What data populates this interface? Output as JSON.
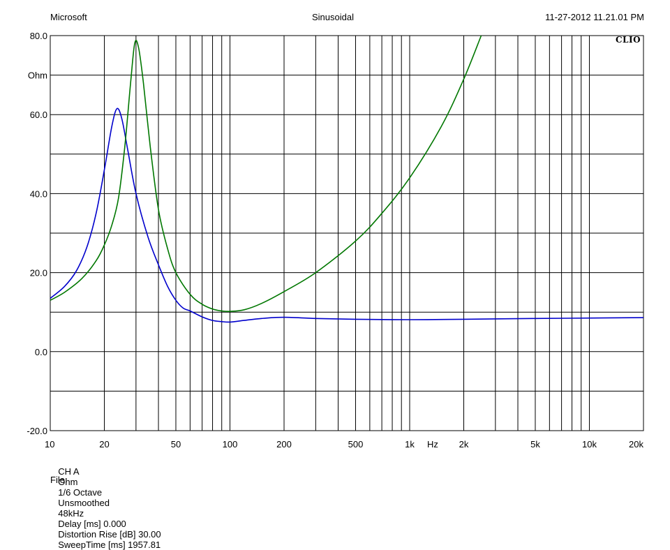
{
  "header": {
    "left": "Microsoft",
    "center": "Sinusoidal",
    "right": "11-27-2012 11.21.01 PM",
    "logo": "CLIO"
  },
  "footer": {
    "items": [
      "CH A",
      "Ohm",
      "1/6 Octave",
      "Unsmoothed",
      "48kHz",
      "Delay [ms] 0.000",
      "Distortion Rise [dB] 30.00",
      "SweepTime [ms] 1957.81"
    ],
    "file_label": "File:"
  },
  "chart_data": {
    "type": "line",
    "x_scale": "log",
    "xlim": [
      10,
      20000
    ],
    "ylim": [
      -20,
      80
    ],
    "ylabel": "Ohm",
    "xlabel": "Hz",
    "grid": true,
    "y_tick_labels": [
      "80.0",
      "60.0",
      "40.0",
      "20.0",
      "0.0",
      "-20.0"
    ],
    "y_ticks": [
      80,
      60,
      40,
      20,
      0,
      -20
    ],
    "x_tick_labels": [
      {
        "value": 10,
        "label": "10"
      },
      {
        "value": 20,
        "label": "20"
      },
      {
        "value": 50,
        "label": "50"
      },
      {
        "value": 100,
        "label": "100"
      },
      {
        "value": 200,
        "label": "200"
      },
      {
        "value": 500,
        "label": "500"
      },
      {
        "value": 1000,
        "label": "1k"
      },
      {
        "value": 2000,
        "label": "2k"
      },
      {
        "value": 5000,
        "label": "5k"
      },
      {
        "value": 10000,
        "label": "10k"
      },
      {
        "value": 20000,
        "label": "20k"
      }
    ],
    "series": [
      {
        "color": "#0000cc",
        "points": [
          [
            10,
            13.5
          ],
          [
            12,
            16.5
          ],
          [
            14,
            20.5
          ],
          [
            16,
            26.5
          ],
          [
            18,
            35
          ],
          [
            20,
            46
          ],
          [
            22,
            57
          ],
          [
            23.5,
            61.5
          ],
          [
            25,
            59
          ],
          [
            27,
            51
          ],
          [
            30,
            40
          ],
          [
            35,
            29
          ],
          [
            40,
            22
          ],
          [
            45,
            16.5
          ],
          [
            50,
            13
          ],
          [
            55,
            11
          ],
          [
            60,
            10.3
          ],
          [
            70,
            8.8
          ],
          [
            80,
            7.9
          ],
          [
            90,
            7.6
          ],
          [
            100,
            7.5
          ],
          [
            120,
            7.9
          ],
          [
            150,
            8.4
          ],
          [
            200,
            8.7
          ],
          [
            300,
            8.4
          ],
          [
            500,
            8.2
          ],
          [
            1000,
            8.1
          ],
          [
            2000,
            8.2
          ],
          [
            5000,
            8.4
          ],
          [
            10000,
            8.5
          ],
          [
            20000,
            8.6
          ]
        ]
      },
      {
        "color": "#007700",
        "points": [
          [
            10,
            13
          ],
          [
            12,
            15
          ],
          [
            15,
            18.5
          ],
          [
            18,
            23
          ],
          [
            20,
            27
          ],
          [
            22,
            32
          ],
          [
            24,
            39
          ],
          [
            26,
            52
          ],
          [
            28,
            68
          ],
          [
            29.5,
            78
          ],
          [
            31,
            77
          ],
          [
            33,
            68
          ],
          [
            36,
            52
          ],
          [
            40,
            36
          ],
          [
            45,
            26
          ],
          [
            50,
            20
          ],
          [
            60,
            14.5
          ],
          [
            70,
            12
          ],
          [
            80,
            10.8
          ],
          [
            90,
            10.3
          ],
          [
            100,
            10.2
          ],
          [
            120,
            10.6
          ],
          [
            150,
            12.2
          ],
          [
            200,
            15.2
          ],
          [
            300,
            20
          ],
          [
            500,
            28
          ],
          [
            700,
            35
          ],
          [
            1000,
            44
          ],
          [
            1500,
            57
          ],
          [
            2000,
            69
          ],
          [
            2500,
            80
          ]
        ]
      }
    ]
  }
}
